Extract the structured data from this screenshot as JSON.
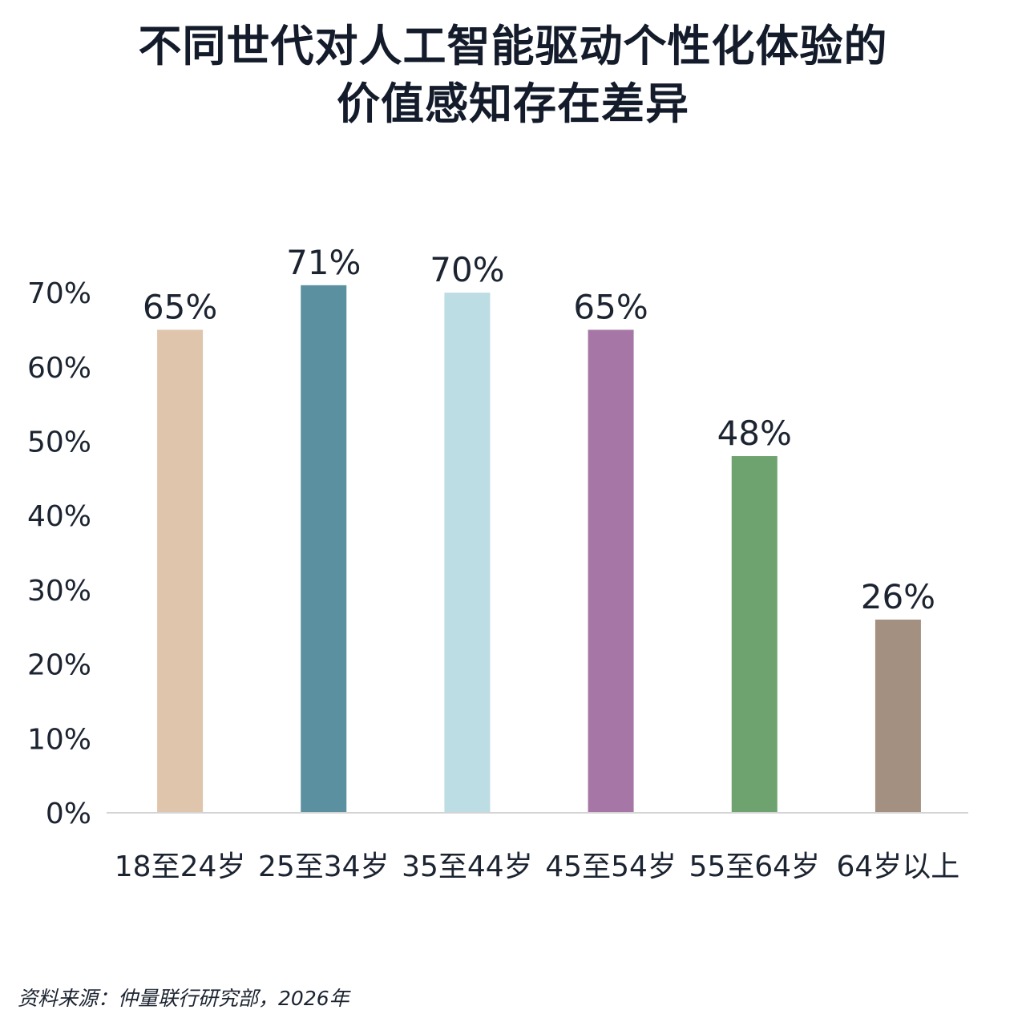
{
  "title_lines": [
    "不同世代对人工智能驱动个性化体验的",
    "价值感知存在差异"
  ],
  "source": "资料来源：仲量联行研究部，2026年",
  "chart_data": {
    "type": "bar",
    "title": "不同世代对人工智能驱动个性化体验的价值感知存在差异",
    "categories": [
      "18至24岁",
      "25至34岁",
      "35至44岁",
      "45至54岁",
      "55至64岁",
      "64岁以上"
    ],
    "values": [
      65,
      71,
      70,
      65,
      48,
      26
    ],
    "value_labels": [
      "65%",
      "71%",
      "70%",
      "65%",
      "48%",
      "26%"
    ],
    "colors": [
      "#dfc5ab",
      "#5b90a0",
      "#bcdde4",
      "#a677a6",
      "#6ea36f",
      "#a39080"
    ],
    "y_ticks": [
      0,
      10,
      20,
      30,
      40,
      50,
      60,
      70
    ],
    "y_tick_labels": [
      "0%",
      "10%",
      "20%",
      "30%",
      "40%",
      "50%",
      "60%",
      "70%"
    ],
    "ylim": [
      0,
      70
    ],
    "xlabel": "",
    "ylabel": "",
    "grid": false,
    "legend": "none"
  }
}
